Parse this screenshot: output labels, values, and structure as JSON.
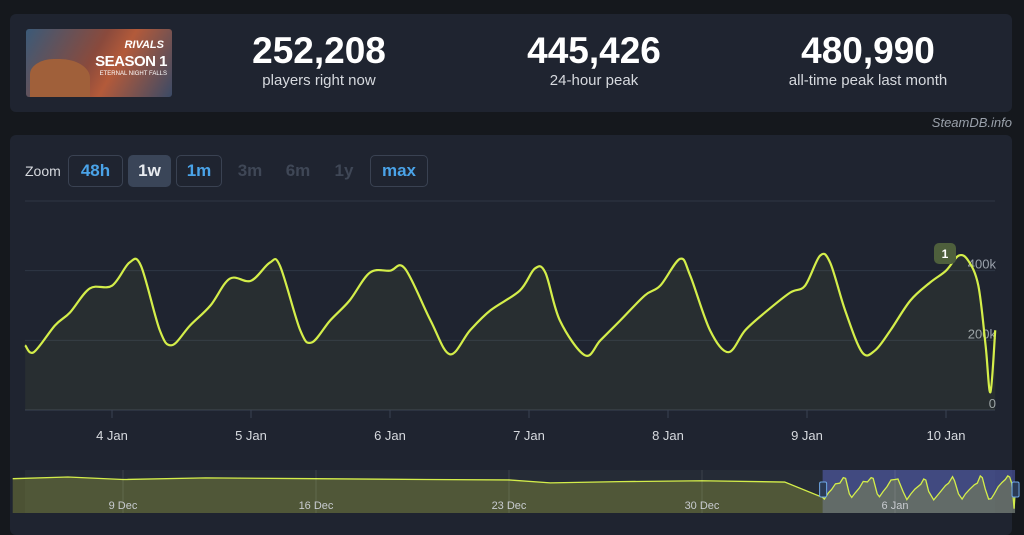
{
  "stats": [
    {
      "value": "252,208",
      "label": "players right now"
    },
    {
      "value": "445,426",
      "label": "24-hour peak"
    },
    {
      "value": "480,990",
      "label": "all-time peak last month"
    }
  ],
  "banner": {
    "logo_text": "RIVALS",
    "season": "SEASON 1",
    "subtitle": "ETERNAL NIGHT FALLS"
  },
  "brand": "SteamDB.info",
  "zoom": {
    "label": "Zoom",
    "buttons": [
      {
        "label": "48h",
        "state": "enabled"
      },
      {
        "label": "1w",
        "state": "active"
      },
      {
        "label": "1m",
        "state": "enabled"
      },
      {
        "label": "3m",
        "state": "disabled"
      },
      {
        "label": "6m",
        "state": "disabled"
      },
      {
        "label": "1y",
        "state": "disabled"
      },
      {
        "label": "max",
        "state": "enabled"
      }
    ]
  },
  "chart_data": {
    "type": "line",
    "line_color": "#d4ee4a",
    "grid": true,
    "ylim": [
      0,
      600000
    ],
    "yticks": [
      {
        "value": 0,
        "label": "0"
      },
      {
        "value": 200000,
        "label": "200k"
      },
      {
        "value": 400000,
        "label": "400k"
      }
    ],
    "xticks": [
      "4 Jan",
      "5 Jan",
      "6 Jan",
      "7 Jan",
      "8 Jan",
      "9 Jan",
      "10 Jan"
    ],
    "annotation": {
      "label": "1",
      "at": "10 Jan 00:00"
    },
    "points": [
      [
        "3 Jan 09:00",
        186000
      ],
      [
        "3 Jan 10:30",
        166000
      ],
      [
        "3 Jan 14:10",
        243000
      ],
      [
        "3 Jan 16:45",
        280000
      ],
      [
        "3 Jan 20:10",
        349000
      ],
      [
        "4 Jan 00:00",
        357000
      ],
      [
        "4 Jan 03:00",
        423000
      ],
      [
        "4 Jan 05:00",
        414000
      ],
      [
        "4 Jan 08:15",
        229000
      ],
      [
        "4 Jan 10:20",
        186000
      ],
      [
        "4 Jan 13:30",
        243000
      ],
      [
        "4 Jan 17:00",
        300000
      ],
      [
        "4 Jan 20:20",
        377000
      ],
      [
        "5 Jan 00:00",
        371000
      ],
      [
        "5 Jan 03:15",
        423000
      ],
      [
        "5 Jan 05:00",
        414000
      ],
      [
        "5 Jan 08:30",
        229000
      ],
      [
        "5 Jan 10:30",
        194000
      ],
      [
        "5 Jan 13:40",
        257000
      ],
      [
        "5 Jan 17:00",
        314000
      ],
      [
        "5 Jan 20:30",
        394000
      ],
      [
        "6 Jan 00:00",
        400000
      ],
      [
        "6 Jan 02:35",
        406000
      ],
      [
        "6 Jan 07:00",
        257000
      ],
      [
        "6 Jan 10:20",
        160000
      ],
      [
        "6 Jan 13:50",
        229000
      ],
      [
        "6 Jan 17:20",
        286000
      ],
      [
        "6 Jan 22:25",
        343000
      ],
      [
        "7 Jan 01:00",
        406000
      ],
      [
        "7 Jan 02:50",
        394000
      ],
      [
        "7 Jan 05:20",
        257000
      ],
      [
        "7 Jan 09:40",
        157000
      ],
      [
        "7 Jan 12:20",
        200000
      ],
      [
        "7 Jan 15:45",
        257000
      ],
      [
        "7 Jan 20:00",
        329000
      ],
      [
        "7 Jan 22:40",
        357000
      ],
      [
        "8 Jan 02:05",
        434000
      ],
      [
        "8 Jan 03:50",
        386000
      ],
      [
        "8 Jan 07:15",
        229000
      ],
      [
        "8 Jan 10:25",
        166000
      ],
      [
        "8 Jan 13:20",
        229000
      ],
      [
        "8 Jan 16:45",
        280000
      ],
      [
        "8 Jan 21:05",
        337000
      ],
      [
        "8 Jan 23:40",
        357000
      ],
      [
        "9 Jan 02:15",
        443000
      ],
      [
        "9 Jan 04:00",
        423000
      ],
      [
        "9 Jan 06:35",
        286000
      ],
      [
        "9 Jan 09:30",
        166000
      ],
      [
        "9 Jan 11:45",
        171000
      ],
      [
        "9 Jan 14:25",
        229000
      ],
      [
        "9 Jan 17:50",
        314000
      ],
      [
        "9 Jan 21:15",
        366000
      ],
      [
        "10 Jan 00:00",
        400000
      ],
      [
        "10 Jan 02:10",
        443000
      ],
      [
        "10 Jan 03:50",
        429000
      ],
      [
        "10 Jan 05:35",
        357000
      ],
      [
        "10 Jan 06:50",
        186000
      ],
      [
        "10 Jan 07:40",
        51000
      ],
      [
        "10 Jan 08:30",
        229000
      ]
    ],
    "navigator": {
      "xticks": [
        "9 Dec",
        "16 Dec",
        "23 Dec",
        "30 Dec",
        "6 Jan"
      ],
      "selection": [
        "3 Jan 09:00",
        "10 Jan 08:30"
      ],
      "points": [
        [
          "5 Dec 00:00",
          410000
        ],
        [
          "7 Dec 00:00",
          430000
        ],
        [
          "9 Dec 00:00",
          400000
        ],
        [
          "12 Dec 00:00",
          420000
        ],
        [
          "16 Dec 00:00",
          410000
        ],
        [
          "20 Dec 00:00",
          400000
        ],
        [
          "23 Dec 00:00",
          395000
        ],
        [
          "24 Dec 12:00",
          360000
        ],
        [
          "27 Dec 00:00",
          375000
        ],
        [
          "30 Dec 00:00",
          385000
        ],
        [
          "2 Jan 00:00",
          370000
        ]
      ]
    }
  }
}
